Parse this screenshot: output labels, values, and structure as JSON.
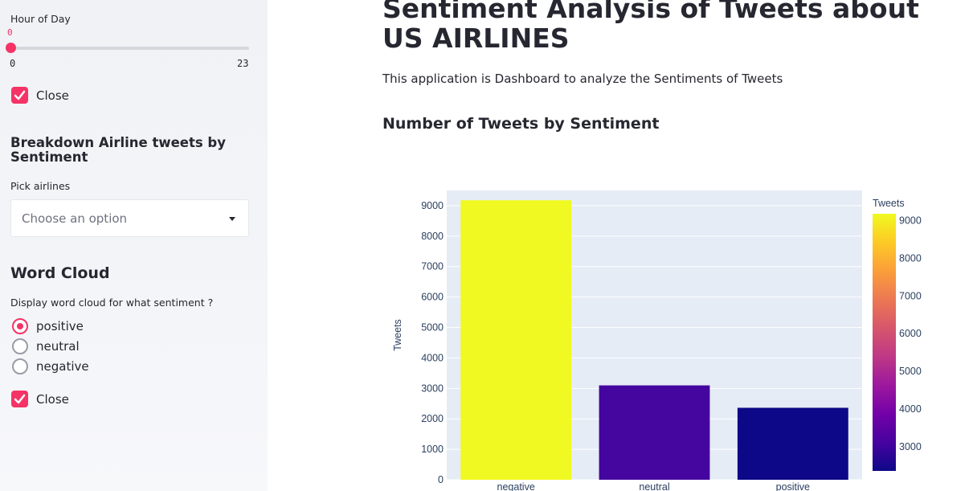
{
  "sidebar": {
    "slider": {
      "label": "Hour of Day",
      "value": "0",
      "min": "0",
      "max": "23"
    },
    "checkbox1": {
      "label": "Close",
      "checked": true
    },
    "breakdown": {
      "heading": "Breakdown Airline tweets by Sentiment",
      "select_label": "Pick airlines",
      "select_placeholder": "Choose an option"
    },
    "wordcloud": {
      "heading": "Word Cloud",
      "radio_label": "Display word cloud for what sentiment ?",
      "options": [
        "positive",
        "neutral",
        "negative"
      ],
      "selected": "positive"
    },
    "checkbox2": {
      "label": "Close",
      "checked": true
    }
  },
  "main": {
    "title": "Sentiment Analysis of Tweets about US AIRLINES",
    "description": "This application is Dashboard to analyze the Sentiments of Tweets",
    "subheading": "Number of Tweets by Sentiment"
  },
  "chart_data": {
    "type": "bar",
    "categories": [
      "negative",
      "neutral",
      "positive"
    ],
    "values": [
      9178,
      3099,
      2363
    ],
    "ylabel": "Tweets",
    "xlabel": "",
    "ylim": [
      0,
      9500
    ],
    "yticks": [
      0,
      1000,
      2000,
      3000,
      4000,
      5000,
      6000,
      7000,
      8000,
      9000
    ],
    "colorbar": {
      "title": "Tweets",
      "ticks": [
        3000,
        4000,
        5000,
        6000,
        7000,
        8000,
        9000
      ],
      "range": [
        2363,
        9178
      ],
      "colorscale": "plasma"
    },
    "colors": {
      "negative": "#f0f921",
      "neutral": "#4506a0",
      "positive": "#0d0887"
    },
    "plot_background": "#e5ecf6",
    "grid": true
  }
}
